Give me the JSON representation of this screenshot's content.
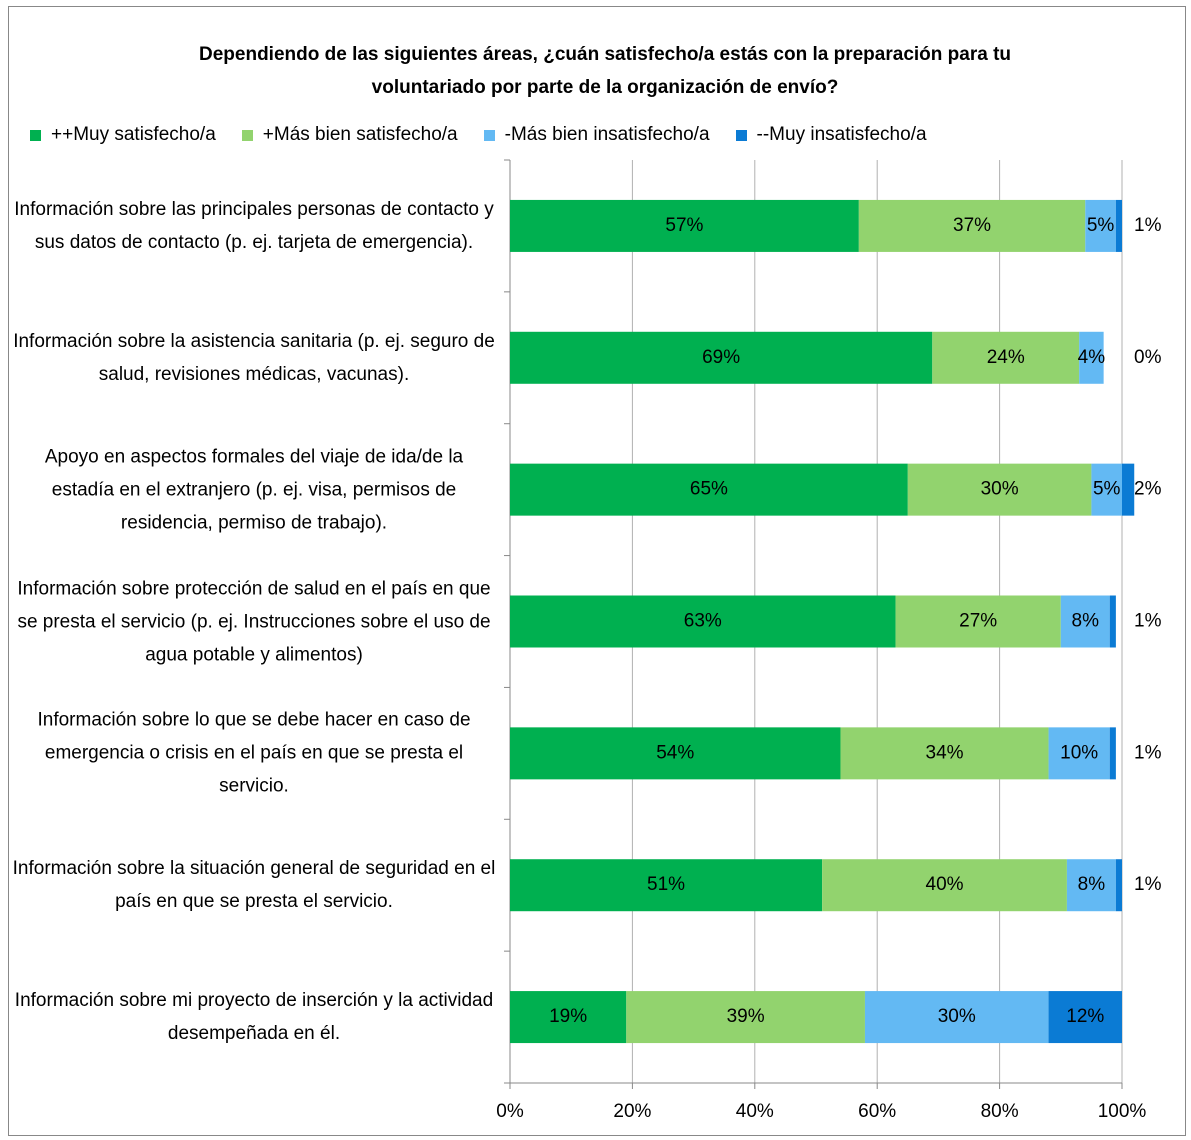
{
  "chart_data": {
    "type": "stacked_bar_horizontal",
    "title": "Dependiendo de las siguientes áreas, ¿cuán satisfecho/a estás con la preparación para tu voluntariado por parte de la organización de envío?",
    "categories": [
      "Información sobre las principales personas de contacto y sus datos de contacto (p. ej. tarjeta de emergencia).",
      "Información sobre la asistencia sanitaria (p. ej. seguro de salud, revisiones médicas, vacunas).",
      "Apoyo en aspectos formales del viaje de ida/de la estadía en el extranjero (p. ej. visa, permisos de residencia, permiso de trabajo).",
      "Información sobre protección de salud en el país en que se presta el servicio (p. ej. Instrucciones sobre el uso de agua potable y alimentos)",
      "Información sobre lo que se debe hacer en caso de emergencia o crisis en el país en que se presta el servicio.",
      "Información sobre la situación general de seguridad en el país en que se presta el servicio.",
      "Información sobre mi proyecto de inserción y la actividad desempeñada en él."
    ],
    "series": [
      {
        "name": "++Muy satisfecho/a",
        "color": "#00b050",
        "values": [
          57,
          69,
          65,
          63,
          54,
          51,
          19
        ],
        "value_labels": [
          "57%",
          "69%",
          "65%",
          "63%",
          "54%",
          "51%",
          "19%"
        ]
      },
      {
        "name": "+Más bien satisfecho/a",
        "color": "#92d36e",
        "values": [
          37,
          24,
          30,
          27,
          34,
          40,
          39
        ],
        "value_labels": [
          "37%",
          "24%",
          "30%",
          "27%",
          "34%",
          "40%",
          "39%"
        ]
      },
      {
        "name": "-Más bien insatisfecho/a",
        "color": "#63b9f3",
        "values": [
          5,
          4,
          5,
          8,
          10,
          8,
          30
        ],
        "value_labels": [
          "5%",
          "4%",
          "5%",
          "8%",
          "10%",
          "8%",
          "30%"
        ]
      },
      {
        "name": "--Muy insatisfecho/a",
        "color": "#0b7bd4",
        "values": [
          1,
          0,
          2,
          1,
          1,
          1,
          12
        ],
        "value_labels": [
          "1%",
          "0%",
          "2%",
          "1%",
          "1%",
          "1%",
          "12%"
        ]
      }
    ],
    "xlim": [
      0,
      100
    ],
    "xticks": [
      {
        "value": 0,
        "label": "0%"
      },
      {
        "value": 20,
        "label": "20%"
      },
      {
        "value": 40,
        "label": "40%"
      },
      {
        "value": 60,
        "label": "60%"
      },
      {
        "value": 80,
        "label": "80%"
      },
      {
        "value": 100,
        "label": "100%"
      }
    ],
    "grid": true,
    "legend": "top"
  }
}
